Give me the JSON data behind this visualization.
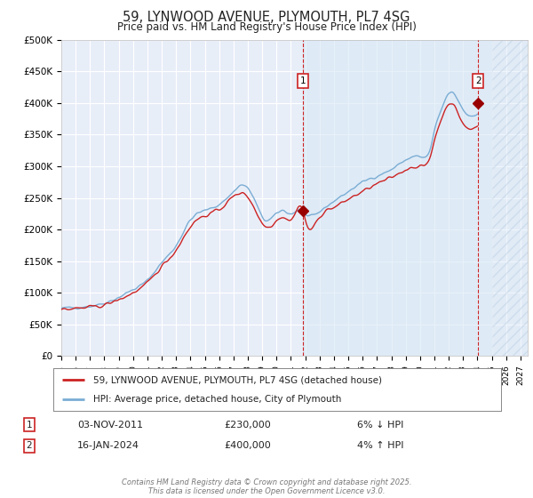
{
  "title": "59, LYNWOOD AVENUE, PLYMOUTH, PL7 4SG",
  "subtitle": "Price paid vs. HM Land Registry's House Price Index (HPI)",
  "ylim": [
    0,
    500000
  ],
  "xlim_start": 1995.0,
  "xlim_end": 2027.5,
  "yticks": [
    0,
    50000,
    100000,
    150000,
    200000,
    250000,
    300000,
    350000,
    400000,
    450000,
    500000
  ],
  "ytick_labels": [
    "£0",
    "£50K",
    "£100K",
    "£150K",
    "£200K",
    "£250K",
    "£300K",
    "£350K",
    "£400K",
    "£450K",
    "£500K"
  ],
  "xticks": [
    1995,
    1996,
    1997,
    1998,
    1999,
    2000,
    2001,
    2002,
    2003,
    2004,
    2005,
    2006,
    2007,
    2008,
    2009,
    2010,
    2011,
    2012,
    2013,
    2014,
    2015,
    2016,
    2017,
    2018,
    2019,
    2020,
    2021,
    2022,
    2023,
    2024,
    2025,
    2026,
    2027
  ],
  "plot_bg": "#e8eef8",
  "grid_color": "#ffffff",
  "hpi_color": "#7aadd4",
  "price_color": "#cc2222",
  "shade_color": "#d0e4f7",
  "transaction1_x": 2011.84,
  "transaction1_y": 230000,
  "transaction2_x": 2024.04,
  "transaction2_y": 400000,
  "forecast_start": 2025.0,
  "legend_label1": "59, LYNWOOD AVENUE, PLYMOUTH, PL7 4SG (detached house)",
  "legend_label2": "HPI: Average price, detached house, City of Plymouth",
  "note1_date": "03-NOV-2011",
  "note1_price": "£230,000",
  "note1_hpi": "6% ↓ HPI",
  "note2_date": "16-JAN-2024",
  "note2_price": "£400,000",
  "note2_hpi": "4% ↑ HPI",
  "footer": "Contains HM Land Registry data © Crown copyright and database right 2025.\nThis data is licensed under the Open Government Licence v3.0."
}
